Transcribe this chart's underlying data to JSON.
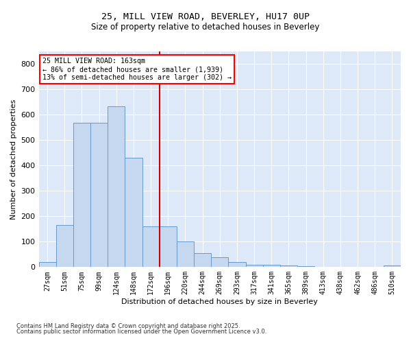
{
  "title_line1": "25, MILL VIEW ROAD, BEVERLEY, HU17 0UP",
  "title_line2": "Size of property relative to detached houses in Beverley",
  "xlabel": "Distribution of detached houses by size in Beverley",
  "ylabel": "Number of detached properties",
  "footnote_line1": "Contains HM Land Registry data © Crown copyright and database right 2025.",
  "footnote_line2": "Contains public sector information licensed under the Open Government Licence v3.0.",
  "annotation_line1": "25 MILL VIEW ROAD: 163sqm",
  "annotation_line2": "← 86% of detached houses are smaller (1,939)",
  "annotation_line3": "13% of semi-detached houses are larger (302) →",
  "bar_color": "#c5d8f0",
  "bar_edge_color": "#6699cc",
  "vline_color": "#cc0000",
  "background_color": "#dde8f8",
  "ylim": [
    0,
    850
  ],
  "categories": [
    "27sqm",
    "51sqm",
    "75sqm",
    "99sqm",
    "124sqm",
    "148sqm",
    "172sqm",
    "196sqm",
    "220sqm",
    "244sqm",
    "269sqm",
    "293sqm",
    "317sqm",
    "341sqm",
    "365sqm",
    "389sqm",
    "413sqm",
    "438sqm",
    "462sqm",
    "486sqm",
    "510sqm"
  ],
  "values": [
    20,
    165,
    570,
    570,
    635,
    430,
    160,
    160,
    100,
    55,
    40,
    20,
    10,
    8,
    5,
    3,
    2,
    2,
    1,
    1,
    5
  ],
  "vline_x": 6.5
}
